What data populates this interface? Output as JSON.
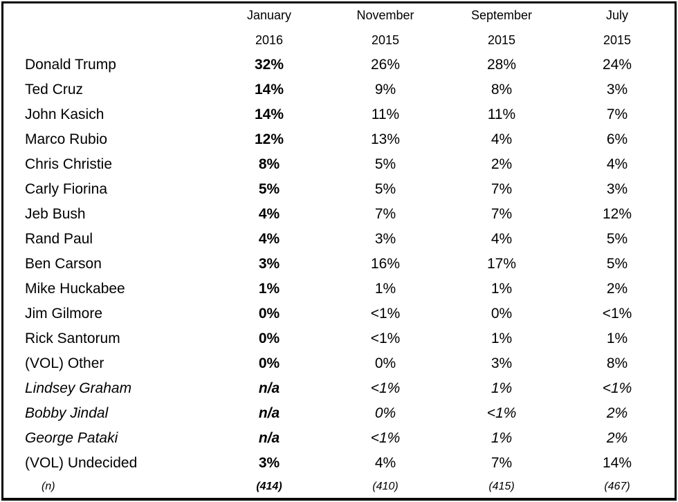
{
  "table": {
    "header": {
      "columns": [
        {
          "month": "January",
          "year": "2016"
        },
        {
          "month": "November",
          "year": "2015"
        },
        {
          "month": "September",
          "year": "2015"
        },
        {
          "month": "July",
          "year": "2015"
        }
      ]
    },
    "rows": [
      {
        "name": "Donald Trump",
        "values": [
          "32%",
          "26%",
          "28%",
          "24%"
        ],
        "italic": false
      },
      {
        "name": "Ted Cruz",
        "values": [
          "14%",
          "9%",
          "8%",
          "3%"
        ],
        "italic": false
      },
      {
        "name": "John Kasich",
        "values": [
          "14%",
          "11%",
          "11%",
          "7%"
        ],
        "italic": false
      },
      {
        "name": "Marco Rubio",
        "values": [
          "12%",
          "13%",
          "4%",
          "6%"
        ],
        "italic": false
      },
      {
        "name": "Chris Christie",
        "values": [
          "8%",
          "5%",
          "2%",
          "4%"
        ],
        "italic": false
      },
      {
        "name": "Carly Fiorina",
        "values": [
          "5%",
          "5%",
          "7%",
          "3%"
        ],
        "italic": false
      },
      {
        "name": "Jeb Bush",
        "values": [
          "4%",
          "7%",
          "7%",
          "12%"
        ],
        "italic": false
      },
      {
        "name": "Rand Paul",
        "values": [
          "4%",
          "3%",
          "4%",
          "5%"
        ],
        "italic": false
      },
      {
        "name": "Ben Carson",
        "values": [
          "3%",
          "16%",
          "17%",
          "5%"
        ],
        "italic": false
      },
      {
        "name": "Mike Huckabee",
        "values": [
          "1%",
          "1%",
          "1%",
          "2%"
        ],
        "italic": false
      },
      {
        "name": "Jim Gilmore",
        "values": [
          "0%",
          "<1%",
          "0%",
          "<1%"
        ],
        "italic": false
      },
      {
        "name": "Rick Santorum",
        "values": [
          "0%",
          "<1%",
          "1%",
          "1%"
        ],
        "italic": false
      },
      {
        "name": "(VOL) Other",
        "values": [
          "0%",
          "0%",
          "3%",
          "8%"
        ],
        "italic": false
      },
      {
        "name": "Lindsey Graham",
        "values": [
          "n/a",
          "<1%",
          "1%",
          "<1%"
        ],
        "italic": true
      },
      {
        "name": "Bobby Jindal",
        "values": [
          "n/a",
          "0%",
          "<1%",
          "2%"
        ],
        "italic": true
      },
      {
        "name": "George Pataki",
        "values": [
          "n/a",
          "<1%",
          "1%",
          "2%"
        ],
        "italic": true
      },
      {
        "name": "(VOL) Undecided",
        "values": [
          "3%",
          "4%",
          "7%",
          "14%"
        ],
        "italic": false
      }
    ],
    "sample_size_row": {
      "name": "(n)",
      "values": [
        "(414)",
        "(410)",
        "(415)",
        "(467)"
      ],
      "italic": true
    }
  }
}
